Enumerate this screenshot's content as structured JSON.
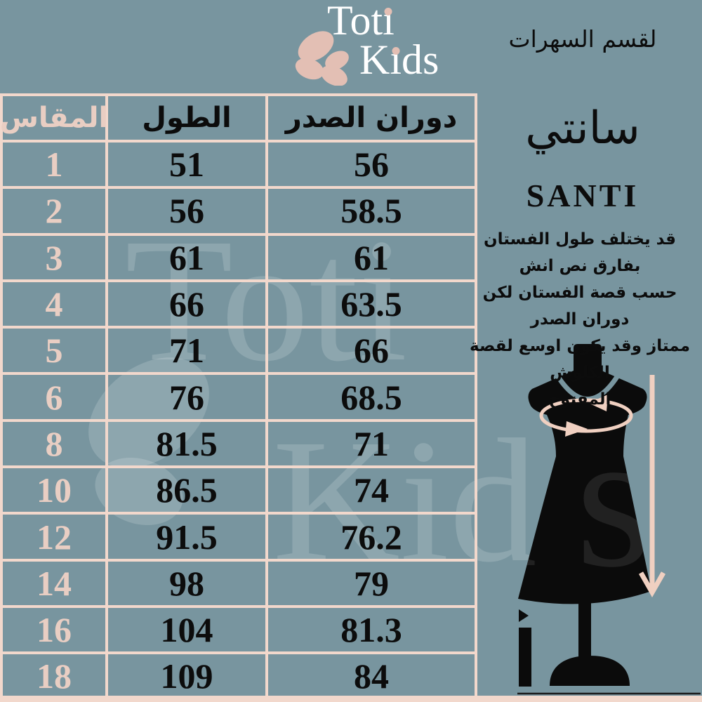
{
  "colors": {
    "background": "#78959F",
    "table_border": "#F2D8CC",
    "accent_text_pink": "#E9CEC3",
    "butterfly_pink": "#E3BFB4",
    "arrow_pink": "#F0D0C1",
    "ink": "#0C0C0C",
    "logo_white": "#FFFFFF",
    "silhouette_black": "#0B0B0B"
  },
  "logo": {
    "line1": "Toti",
    "line2": "Kids"
  },
  "header": {
    "section_label": "لقسم السهرات"
  },
  "unit": {
    "arabic": "سانتي",
    "latin": "SANTI"
  },
  "note_lines": [
    "قد يختلف طول الفستان بفارق نص انش",
    "حسب قصة الفستان لكن دوران الصدر",
    "ممتاز وقد يكون اوسع لقصة الكلوش",
    "المفتوح"
  ],
  "chart_data": {
    "type": "table",
    "columns": [
      "المقاس",
      "الطول",
      "دوران الصدر"
    ],
    "rows": [
      [
        "1",
        "51",
        "56"
      ],
      [
        "2",
        "56",
        "58.5"
      ],
      [
        "3",
        "61",
        "61"
      ],
      [
        "4",
        "66",
        "63.5"
      ],
      [
        "5",
        "71",
        "66"
      ],
      [
        "6",
        "76",
        "68.5"
      ],
      [
        "8",
        "81.5",
        "71"
      ],
      [
        "10",
        "86.5",
        "74"
      ],
      [
        "12",
        "91.5",
        "76.2"
      ],
      [
        "14",
        "98",
        "79"
      ],
      [
        "16",
        "104",
        "81.3"
      ],
      [
        "18",
        "109",
        "84"
      ]
    ]
  },
  "watermark": {
    "line1": "Toti",
    "line2": "Kids",
    "dress_overlay": "ds"
  }
}
